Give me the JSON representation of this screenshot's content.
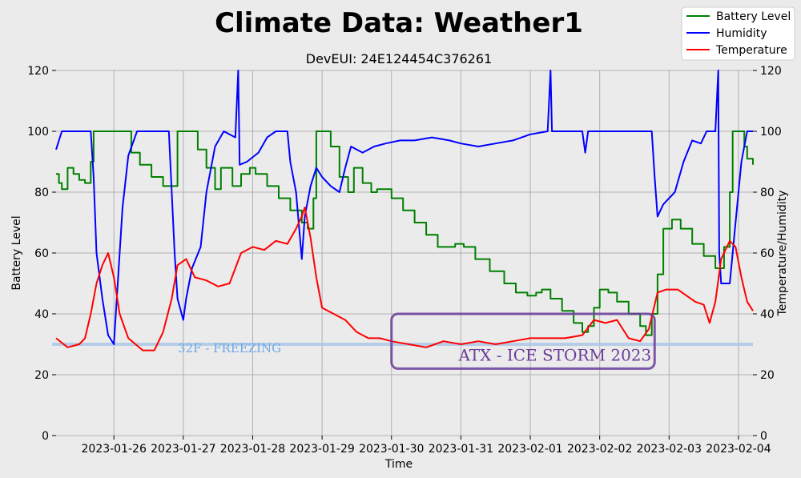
{
  "chart_data": {
    "type": "line",
    "title": "Climate Data: Weather1",
    "subtitle": "DevEUI: 24E124454C376261",
    "xlabel": "Time",
    "ylabel_left": "Battery Level",
    "ylabel_right": "Temperature/Humidity",
    "ylim": [
      0,
      120
    ],
    "yticks": [
      0,
      20,
      40,
      60,
      80,
      100,
      120
    ],
    "xlim": [
      "2023-01-25 04:00",
      "2023-02-04 05:00"
    ],
    "xticks": [
      "2023-01-26",
      "2023-01-27",
      "2023-01-28",
      "2023-01-29",
      "2023-01-30",
      "2023-01-31",
      "2023-02-01",
      "2023-02-02",
      "2023-02-03",
      "2023-02-04"
    ],
    "grid": true,
    "legend_position": "top-right",
    "series": [
      {
        "name": "Battery Level",
        "color": "#008000",
        "axis": "left",
        "points": [
          [
            "2023-01-25 04:00",
            86
          ],
          [
            "2023-01-25 05:00",
            83
          ],
          [
            "2023-01-25 06:00",
            81
          ],
          [
            "2023-01-25 08:00",
            88
          ],
          [
            "2023-01-25 10:00",
            86
          ],
          [
            "2023-01-25 12:00",
            84
          ],
          [
            "2023-01-25 14:00",
            83
          ],
          [
            "2023-01-25 16:00",
            90
          ],
          [
            "2023-01-25 17:00",
            100
          ],
          [
            "2023-01-25 21:00",
            100
          ],
          [
            "2023-01-26 00:00",
            100
          ],
          [
            "2023-01-26 03:00",
            100
          ],
          [
            "2023-01-26 06:00",
            93
          ],
          [
            "2023-01-26 09:00",
            89
          ],
          [
            "2023-01-26 13:00",
            85
          ],
          [
            "2023-01-26 17:00",
            82
          ],
          [
            "2023-01-26 20:00",
            82
          ],
          [
            "2023-01-26 22:00",
            100
          ],
          [
            "2023-01-27 02:00",
            100
          ],
          [
            "2023-01-27 05:00",
            94
          ],
          [
            "2023-01-27 08:00",
            88
          ],
          [
            "2023-01-27 11:00",
            81
          ],
          [
            "2023-01-27 13:00",
            88
          ],
          [
            "2023-01-27 17:00",
            82
          ],
          [
            "2023-01-27 20:00",
            86
          ],
          [
            "2023-01-27 23:00",
            88
          ],
          [
            "2023-01-28 01:00",
            86
          ],
          [
            "2023-01-28 05:00",
            82
          ],
          [
            "2023-01-28 09:00",
            78
          ],
          [
            "2023-01-28 13:00",
            74
          ],
          [
            "2023-01-28 17:00",
            70
          ],
          [
            "2023-01-28 19:00",
            68
          ],
          [
            "2023-01-28 21:00",
            78
          ],
          [
            "2023-01-28 22:00",
            100
          ],
          [
            "2023-01-29 01:00",
            100
          ],
          [
            "2023-01-29 03:00",
            95
          ],
          [
            "2023-01-29 06:00",
            85
          ],
          [
            "2023-01-29 09:00",
            80
          ],
          [
            "2023-01-29 11:00",
            88
          ],
          [
            "2023-01-29 14:00",
            83
          ],
          [
            "2023-01-29 17:00",
            80
          ],
          [
            "2023-01-29 19:00",
            81
          ],
          [
            "2023-01-29 22:00",
            81
          ],
          [
            "2023-01-30 00:00",
            78
          ],
          [
            "2023-01-30 04:00",
            74
          ],
          [
            "2023-01-30 08:00",
            70
          ],
          [
            "2023-01-30 12:00",
            66
          ],
          [
            "2023-01-30 16:00",
            62
          ],
          [
            "2023-01-30 20:00",
            62
          ],
          [
            "2023-01-30 22:00",
            63
          ],
          [
            "2023-01-31 01:00",
            62
          ],
          [
            "2023-01-31 05:00",
            58
          ],
          [
            "2023-01-31 10:00",
            54
          ],
          [
            "2023-01-31 15:00",
            50
          ],
          [
            "2023-01-31 19:00",
            47
          ],
          [
            "2023-01-31 23:00",
            46
          ],
          [
            "2023-02-01 02:00",
            47
          ],
          [
            "2023-02-01 04:00",
            48
          ],
          [
            "2023-02-01 07:00",
            45
          ],
          [
            "2023-02-01 11:00",
            41
          ],
          [
            "2023-02-01 15:00",
            37
          ],
          [
            "2023-02-01 18:00",
            34
          ],
          [
            "2023-02-01 20:00",
            36
          ],
          [
            "2023-02-01 22:00",
            42
          ],
          [
            "2023-02-02 00:00",
            48
          ],
          [
            "2023-02-02 03:00",
            47
          ],
          [
            "2023-02-02 06:00",
            44
          ],
          [
            "2023-02-02 10:00",
            40
          ],
          [
            "2023-02-02 14:00",
            36
          ],
          [
            "2023-02-02 16:00",
            33
          ],
          [
            "2023-02-02 18:00",
            40
          ],
          [
            "2023-02-02 20:00",
            53
          ],
          [
            "2023-02-02 22:00",
            68
          ],
          [
            "2023-02-03 01:00",
            71
          ],
          [
            "2023-02-03 04:00",
            68
          ],
          [
            "2023-02-03 08:00",
            63
          ],
          [
            "2023-02-03 12:00",
            59
          ],
          [
            "2023-02-03 16:00",
            55
          ],
          [
            "2023-02-03 18:00",
            55
          ],
          [
            "2023-02-03 19:00",
            62
          ],
          [
            "2023-02-03 21:00",
            80
          ],
          [
            "2023-02-03 22:00",
            100
          ],
          [
            "2023-02-04 01:00",
            100
          ],
          [
            "2023-02-04 02:00",
            95
          ],
          [
            "2023-02-04 03:00",
            91
          ],
          [
            "2023-02-04 05:00",
            89
          ]
        ]
      },
      {
        "name": "Humidity",
        "color": "#0000ff",
        "axis": "right",
        "points": [
          [
            "2023-01-25 04:00",
            94
          ],
          [
            "2023-01-25 06:00",
            100
          ],
          [
            "2023-01-25 12:00",
            100
          ],
          [
            "2023-01-25 16:00",
            100
          ],
          [
            "2023-01-25 17:00",
            85
          ],
          [
            "2023-01-25 18:00",
            60
          ],
          [
            "2023-01-25 20:00",
            45
          ],
          [
            "2023-01-25 22:00",
            33
          ],
          [
            "2023-01-26 00:00",
            30
          ],
          [
            "2023-01-26 01:00",
            45
          ],
          [
            "2023-01-26 03:00",
            75
          ],
          [
            "2023-01-26 05:00",
            92
          ],
          [
            "2023-01-26 08:00",
            100
          ],
          [
            "2023-01-26 16:00",
            100
          ],
          [
            "2023-01-26 19:00",
            100
          ],
          [
            "2023-01-26 20:00",
            80
          ],
          [
            "2023-01-26 21:00",
            60
          ],
          [
            "2023-01-26 22:00",
            45
          ],
          [
            "2023-01-27 00:00",
            38
          ],
          [
            "2023-01-27 01:00",
            45
          ],
          [
            "2023-01-27 03:00",
            55
          ],
          [
            "2023-01-27 06:00",
            62
          ],
          [
            "2023-01-27 08:00",
            80
          ],
          [
            "2023-01-27 11:00",
            95
          ],
          [
            "2023-01-27 14:00",
            100
          ],
          [
            "2023-01-27 18:00",
            98
          ],
          [
            "2023-01-27 19:00",
            120
          ],
          [
            "2023-01-27 19:30",
            89
          ],
          [
            "2023-01-27 22:00",
            90
          ],
          [
            "2023-01-28 02:00",
            93
          ],
          [
            "2023-01-28 05:00",
            98
          ],
          [
            "2023-01-28 08:00",
            100
          ],
          [
            "2023-01-28 12:00",
            100
          ],
          [
            "2023-01-28 13:00",
            90
          ],
          [
            "2023-01-28 15:00",
            80
          ],
          [
            "2023-01-28 17:00",
            58
          ],
          [
            "2023-01-28 18:00",
            72
          ],
          [
            "2023-01-28 20:00",
            82
          ],
          [
            "2023-01-28 22:00",
            88
          ],
          [
            "2023-01-29 00:00",
            85
          ],
          [
            "2023-01-29 03:00",
            82
          ],
          [
            "2023-01-29 06:00",
            80
          ],
          [
            "2023-01-29 08:00",
            88
          ],
          [
            "2023-01-29 10:00",
            95
          ],
          [
            "2023-01-29 14:00",
            93
          ],
          [
            "2023-01-29 18:00",
            95
          ],
          [
            "2023-01-29 22:00",
            96
          ],
          [
            "2023-01-30 03:00",
            97
          ],
          [
            "2023-01-30 08:00",
            97
          ],
          [
            "2023-01-30 14:00",
            98
          ],
          [
            "2023-01-30 20:00",
            97
          ],
          [
            "2023-01-31 00:00",
            96
          ],
          [
            "2023-01-31 06:00",
            95
          ],
          [
            "2023-01-31 12:00",
            96
          ],
          [
            "2023-01-31 18:00",
            97
          ],
          [
            "2023-02-01 00:00",
            99
          ],
          [
            "2023-02-01 06:00",
            100
          ],
          [
            "2023-02-01 07:00",
            120
          ],
          [
            "2023-02-01 07:30",
            100
          ],
          [
            "2023-02-01 14:00",
            100
          ],
          [
            "2023-02-01 18:00",
            100
          ],
          [
            "2023-02-01 19:00",
            93
          ],
          [
            "2023-02-01 20:00",
            100
          ],
          [
            "2023-02-02 06:00",
            100
          ],
          [
            "2023-02-02 12:00",
            100
          ],
          [
            "2023-02-02 18:00",
            100
          ],
          [
            "2023-02-02 19:00",
            85
          ],
          [
            "2023-02-02 20:00",
            72
          ],
          [
            "2023-02-02 22:00",
            76
          ],
          [
            "2023-02-03 02:00",
            80
          ],
          [
            "2023-02-03 05:00",
            90
          ],
          [
            "2023-02-03 08:00",
            97
          ],
          [
            "2023-02-03 11:00",
            96
          ],
          [
            "2023-02-03 13:00",
            100
          ],
          [
            "2023-02-03 16:00",
            100
          ],
          [
            "2023-02-03 17:00",
            120
          ],
          [
            "2023-02-03 17:20",
            60
          ],
          [
            "2023-02-03 18:00",
            50
          ],
          [
            "2023-02-03 21:00",
            50
          ],
          [
            "2023-02-03 23:00",
            70
          ],
          [
            "2023-02-04 01:00",
            90
          ],
          [
            "2023-02-04 03:00",
            100
          ],
          [
            "2023-02-04 05:00",
            100
          ]
        ]
      },
      {
        "name": "Temperature",
        "color": "#ff0000",
        "axis": "right",
        "points": [
          [
            "2023-01-25 04:00",
            32
          ],
          [
            "2023-01-25 08:00",
            29
          ],
          [
            "2023-01-25 12:00",
            30
          ],
          [
            "2023-01-25 14:00",
            32
          ],
          [
            "2023-01-25 16:00",
            40
          ],
          [
            "2023-01-25 18:00",
            50
          ],
          [
            "2023-01-25 20:00",
            56
          ],
          [
            "2023-01-25 22:00",
            60
          ],
          [
            "2023-01-26 00:00",
            52
          ],
          [
            "2023-01-26 02:00",
            40
          ],
          [
            "2023-01-26 05:00",
            32
          ],
          [
            "2023-01-26 10:00",
            28
          ],
          [
            "2023-01-26 14:00",
            28
          ],
          [
            "2023-01-26 17:00",
            34
          ],
          [
            "2023-01-26 20:00",
            45
          ],
          [
            "2023-01-26 22:00",
            56
          ],
          [
            "2023-01-27 01:00",
            58
          ],
          [
            "2023-01-27 04:00",
            52
          ],
          [
            "2023-01-27 08:00",
            51
          ],
          [
            "2023-01-27 12:00",
            49
          ],
          [
            "2023-01-27 16:00",
            50
          ],
          [
            "2023-01-27 20:00",
            60
          ],
          [
            "2023-01-28 00:00",
            62
          ],
          [
            "2023-01-28 04:00",
            61
          ],
          [
            "2023-01-28 08:00",
            64
          ],
          [
            "2023-01-28 12:00",
            63
          ],
          [
            "2023-01-28 15:00",
            68
          ],
          [
            "2023-01-28 17:00",
            72
          ],
          [
            "2023-01-28 18:00",
            75
          ],
          [
            "2023-01-28 20:00",
            65
          ],
          [
            "2023-01-28 22:00",
            52
          ],
          [
            "2023-01-29 00:00",
            42
          ],
          [
            "2023-01-29 04:00",
            40
          ],
          [
            "2023-01-29 08:00",
            38
          ],
          [
            "2023-01-29 12:00",
            34
          ],
          [
            "2023-01-29 16:00",
            32
          ],
          [
            "2023-01-29 20:00",
            32
          ],
          [
            "2023-01-30 00:00",
            31
          ],
          [
            "2023-01-30 06:00",
            30
          ],
          [
            "2023-01-30 12:00",
            29
          ],
          [
            "2023-01-30 18:00",
            31
          ],
          [
            "2023-01-31 00:00",
            30
          ],
          [
            "2023-01-31 06:00",
            31
          ],
          [
            "2023-01-31 12:00",
            30
          ],
          [
            "2023-01-31 18:00",
            31
          ],
          [
            "2023-02-01 00:00",
            32
          ],
          [
            "2023-02-01 06:00",
            32
          ],
          [
            "2023-02-01 12:00",
            32
          ],
          [
            "2023-02-01 18:00",
            33
          ],
          [
            "2023-02-01 22:00",
            38
          ],
          [
            "2023-02-02 02:00",
            37
          ],
          [
            "2023-02-02 06:00",
            38
          ],
          [
            "2023-02-02 10:00",
            32
          ],
          [
            "2023-02-02 14:00",
            31
          ],
          [
            "2023-02-02 17:00",
            35
          ],
          [
            "2023-02-02 20:00",
            47
          ],
          [
            "2023-02-02 23:00",
            48
          ],
          [
            "2023-02-03 03:00",
            48
          ],
          [
            "2023-02-03 06:00",
            46
          ],
          [
            "2023-02-03 09:00",
            44
          ],
          [
            "2023-02-03 12:00",
            43
          ],
          [
            "2023-02-03 14:00",
            37
          ],
          [
            "2023-02-03 16:00",
            44
          ],
          [
            "2023-02-03 18:00",
            58
          ],
          [
            "2023-02-03 21:00",
            64
          ],
          [
            "2023-02-03 23:00",
            62
          ],
          [
            "2023-02-04 01:00",
            52
          ],
          [
            "2023-02-04 03:00",
            44
          ],
          [
            "2023-02-04 05:00",
            41
          ]
        ]
      }
    ],
    "reference_line": {
      "value": 30,
      "label": "32F - FREEZING",
      "color": "#a9c6e8"
    },
    "annotation_box": {
      "label": "ATX - ICE STORM 2023",
      "x_range": [
        "2023-01-30 00:00",
        "2023-02-02 19:00"
      ],
      "y_range": [
        22,
        40
      ],
      "color": "#6a3d9a"
    }
  }
}
